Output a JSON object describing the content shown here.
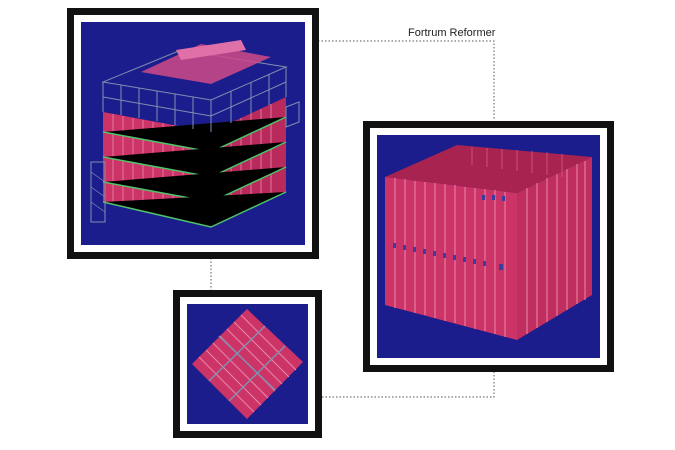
{
  "title": "Fortrum Reformer",
  "colors": {
    "background": "#ffffff",
    "frame": "#111111",
    "model_bg": "#1c1d8c",
    "panel": "#cc3366",
    "panel_light": "#e0558a",
    "steel": "#7f8fb0",
    "frame_green": "#4fc36a",
    "connector": "#555555"
  },
  "views": [
    {
      "name": "structure-3d-view",
      "content": "full reformer model with steel framing and platforms"
    },
    {
      "name": "enclosure-3d-view",
      "content": "open-top box of wall panels"
    },
    {
      "name": "floor-panel-view",
      "content": "floor panel grid"
    }
  ]
}
